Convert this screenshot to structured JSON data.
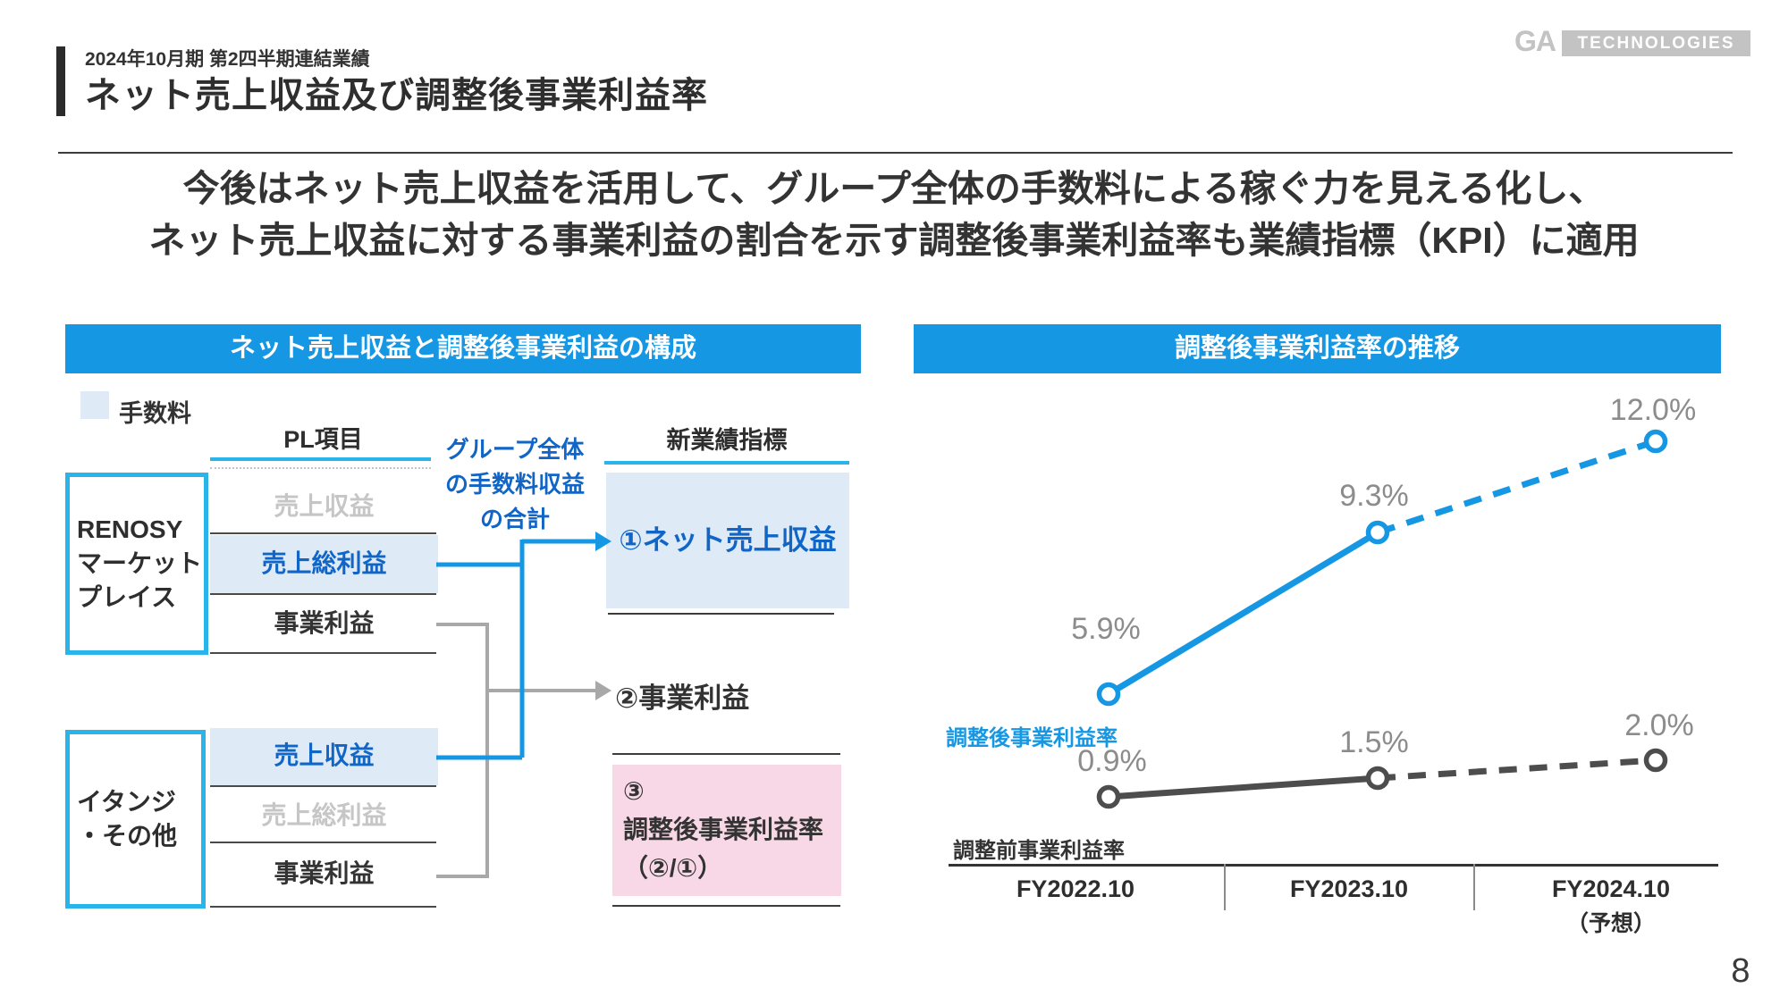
{
  "header": {
    "kicker": "2024年10月期 第2四半期連結業績",
    "title": "ネット売上収益及び調整後事業利益率"
  },
  "logo": {
    "mark": "GA",
    "wordmark": "TECHNOLOGIES"
  },
  "statement": {
    "line1": "今後はネット売上収益を活用して、グループ全体の手数料による稼ぐ力を見える化し、",
    "line2": "ネット売上収益に対する事業利益の割合を示す調整後事業利益率も業績指標（KPI）に適用"
  },
  "left_panel": {
    "header": "ネット売上収益と調整後事業利益の構成",
    "legend_label": "手数料",
    "pl_column_header": "PL項目",
    "new_metric_column_header": "新業績指標",
    "group_note": {
      "line1": "グループ全体",
      "line2": "の手数料収益",
      "line3": "の合計"
    },
    "renosy_box": {
      "line1": "RENOSY",
      "line2": "マーケット",
      "line3": "プレイス"
    },
    "itandi_box": {
      "line1": "イタンジ",
      "line2": "・その他"
    },
    "renosy_rows": {
      "revenue": "売上収益",
      "gross_profit": "売上総利益",
      "business_profit": "事業利益"
    },
    "itandi_rows": {
      "revenue": "売上収益",
      "gross_profit": "売上総利益",
      "business_profit": "事業利益"
    },
    "new_metrics": {
      "net_revenue": "①ネット売上収益",
      "business_profit": "②事業利益",
      "adjusted_margin_line1": "③",
      "adjusted_margin_line2": "調整後事業利益率",
      "adjusted_margin_line3": "（②/①）"
    }
  },
  "right_panel": {
    "header": "調整後事業利益率の推移",
    "forecast_note": "（予想）"
  },
  "chart_data": {
    "type": "line",
    "title": "調整後事業利益率の推移",
    "categories": [
      "FY2022.10",
      "FY2023.10",
      "FY2024.10"
    ],
    "x_sublabels": [
      "",
      "",
      "（予想）"
    ],
    "unit": "%",
    "grid": false,
    "legend_position": "inline-labels",
    "series": [
      {
        "name": "調整後事業利益率",
        "values": [
          5.9,
          9.3,
          12.0
        ],
        "color": "#1697e4",
        "dashed_from_index": 1
      },
      {
        "name": "調整前事業利益率",
        "values": [
          0.9,
          1.5,
          2.0
        ],
        "color": "#4d4d4d",
        "dashed_from_index": 1
      }
    ],
    "point_labels": [
      [
        "5.9%",
        "9.3%",
        "12.0%"
      ],
      [
        "0.9%",
        "1.5%",
        "2.0%"
      ]
    ]
  },
  "footer": {
    "page_number": "8"
  },
  "colors": {
    "accent_blue": "#1697e4",
    "cyan_border": "#2ab5ea",
    "text_blue": "#1065c6",
    "highlight_bg": "#deebf6",
    "pink_bg": "#f8d8e6",
    "muted_text": "#c6c6c6",
    "data_label_gray": "#8c8c8c",
    "dark_text": "#333333",
    "logo_gray": "#c3c3c3"
  }
}
